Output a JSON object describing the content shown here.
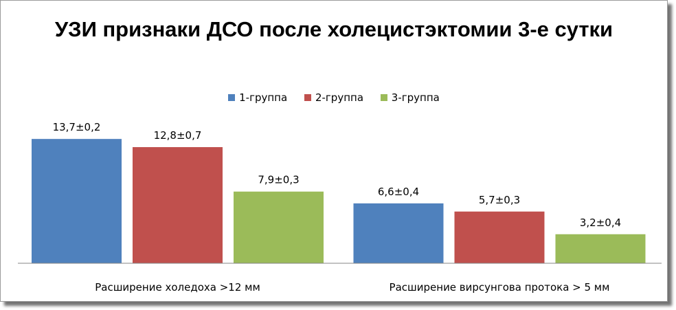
{
  "chart_data": {
    "type": "bar",
    "title": "УЗИ признаки ДСО после холецистэктомии 3-е сутки",
    "categories": [
      "Расширение холедоха >12 мм",
      "Расширение вирсунгова протока > 5 мм"
    ],
    "series": [
      {
        "name": "1-группа",
        "color": "#4f81bd",
        "values": [
          13.7,
          6.6
        ],
        "labels": [
          "13,7±0,2",
          "6,6±0,4"
        ]
      },
      {
        "name": "2-группа",
        "color": "#c0504d",
        "values": [
          12.8,
          5.7
        ],
        "labels": [
          "12,8±0,7",
          "5,7±0,3"
        ]
      },
      {
        "name": "3-группа",
        "color": "#9bbb59",
        "values": [
          7.9,
          3.2
        ],
        "labels": [
          "7,9±0,3",
          "3,2±0,4"
        ]
      }
    ],
    "ylim": [
      0,
      16
    ],
    "legend_position": "top",
    "grid": false,
    "axis_color": "#868686"
  }
}
